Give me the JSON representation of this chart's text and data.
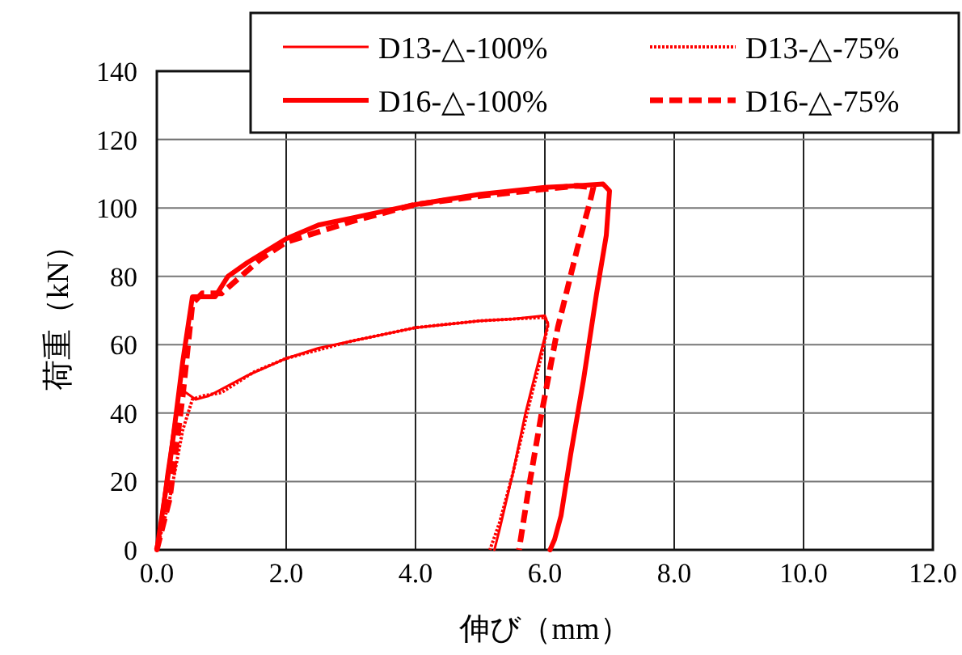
{
  "chart_data": {
    "type": "line",
    "xlabel": "伸び（mm）",
    "ylabel": "荷重（kN）",
    "xlim": [
      0,
      12
    ],
    "ylim": [
      0,
      140
    ],
    "xticks": [
      {
        "value": 0,
        "label": "0.0"
      },
      {
        "value": 2,
        "label": "2.0"
      },
      {
        "value": 4,
        "label": "4.0"
      },
      {
        "value": 6,
        "label": "6.0"
      },
      {
        "value": 8,
        "label": "8.0"
      },
      {
        "value": 10,
        "label": "10.0"
      },
      {
        "value": 12,
        "label": "12.0"
      }
    ],
    "yticks": [
      0,
      20,
      40,
      60,
      80,
      100,
      120,
      140
    ],
    "grid": true,
    "legend": "top right",
    "series": [
      {
        "name": "D13-△-100%",
        "color": "#ff0000",
        "line_style": "solid",
        "x": [
          0,
          0.15,
          0.33,
          0.45,
          0.6,
          0.8,
          1.0,
          1.4,
          2.0,
          2.5,
          3.0,
          3.5,
          4.0,
          4.5,
          5.0,
          5.5,
          6.0,
          6.05,
          5.9,
          5.7,
          5.5,
          5.3,
          5.22
        ],
        "values": [
          0,
          22,
          45,
          46,
          44,
          45,
          47,
          51,
          56,
          59,
          61,
          63,
          65,
          66,
          67,
          67.5,
          68.5,
          66,
          55,
          40,
          22,
          6,
          0
        ]
      },
      {
        "name": "D13-△-75%",
        "color": "#ff0000",
        "line_style": "dotted",
        "x": [
          0,
          0.2,
          0.4,
          0.55,
          0.7,
          1.0,
          1.5,
          2.0,
          3.0,
          4.0,
          5.0,
          6.0,
          6.05,
          5.95,
          5.75,
          5.5,
          5.3,
          5.15
        ],
        "values": [
          0,
          15,
          35,
          44,
          45,
          46,
          52,
          56,
          61,
          65,
          67,
          68,
          66,
          57,
          42,
          22,
          8,
          0
        ]
      },
      {
        "name": "D16-△-100%",
        "color": "#ff0000",
        "line_style": "solid",
        "x": [
          0,
          0.2,
          0.4,
          0.55,
          0.7,
          0.9,
          1.1,
          1.4,
          2.0,
          2.5,
          3.0,
          3.5,
          4.0,
          4.5,
          5.0,
          5.5,
          6.0,
          6.5,
          6.9,
          7.0,
          6.95,
          6.8,
          6.6,
          6.4,
          6.25,
          6.15,
          6.08
        ],
        "values": [
          0,
          25,
          55,
          74,
          74,
          74,
          80,
          84,
          91,
          95,
          97,
          99,
          101,
          102.5,
          104,
          105,
          106,
          106.5,
          107,
          105,
          92,
          75,
          50,
          28,
          10,
          3,
          0
        ]
      },
      {
        "name": "D16-△-75%",
        "color": "#ff0000",
        "line_style": "dashed",
        "x": [
          0,
          0.2,
          0.4,
          0.55,
          0.7,
          1.0,
          1.3,
          1.6,
          2.0,
          3.0,
          4.0,
          5.0,
          6.0,
          6.5,
          6.75,
          6.7,
          6.5,
          6.2,
          5.95,
          5.75,
          5.6
        ],
        "values": [
          0,
          15,
          45,
          72,
          75,
          75,
          80,
          85,
          90,
          96,
          101,
          103.5,
          105.5,
          106.5,
          106,
          102,
          88,
          65,
          40,
          18,
          0
        ]
      }
    ]
  }
}
